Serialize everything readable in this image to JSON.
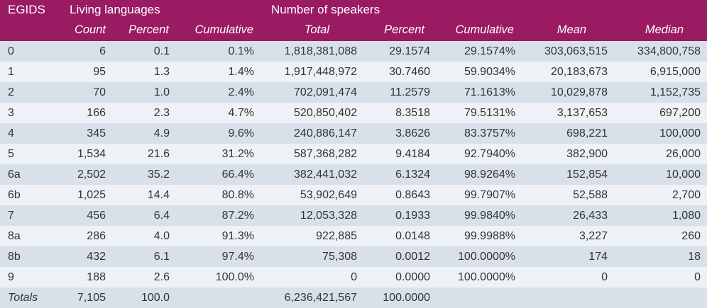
{
  "header": {
    "group1": "EGIDS",
    "group2": "Living languages",
    "group3": "Number of speakers",
    "columns": [
      "Count",
      "Percent",
      "Cumulative",
      "Total",
      "Percent",
      "Cumulative",
      "Mean",
      "Median"
    ]
  },
  "rows": [
    [
      "0",
      "6",
      "0.1",
      "0.1%",
      "1,818,381,088",
      "29.1574",
      "29.1574%",
      "303,063,515",
      "334,800,758"
    ],
    [
      "1",
      "95",
      "1.3",
      "1.4%",
      "1,917,448,972",
      "30.7460",
      "59.9034%",
      "20,183,673",
      "6,915,000"
    ],
    [
      "2",
      "70",
      "1.0",
      "2.4%",
      "702,091,474",
      "11.2579",
      "71.1613%",
      "10,029,878",
      "1,152,735"
    ],
    [
      "3",
      "166",
      "2.3",
      "4.7%",
      "520,850,402",
      "8.3518",
      "79.5131%",
      "3,137,653",
      "697,200"
    ],
    [
      "4",
      "345",
      "4.9",
      "9.6%",
      "240,886,147",
      "3.8626",
      "83.3757%",
      "698,221",
      "100,000"
    ],
    [
      "5",
      "1,534",
      "21.6",
      "31.2%",
      "587,368,282",
      "9.4184",
      "92.7940%",
      "382,900",
      "26,000"
    ],
    [
      "6a",
      "2,502",
      "35.2",
      "66.4%",
      "382,441,032",
      "6.1324",
      "98.9264%",
      "152,854",
      "10,000"
    ],
    [
      "6b",
      "1,025",
      "14.4",
      "80.8%",
      "53,902,649",
      "0.8643",
      "99.7907%",
      "52,588",
      "2,700"
    ],
    [
      "7",
      "456",
      "6.4",
      "87.2%",
      "12,053,328",
      "0.1933",
      "99.9840%",
      "26,433",
      "1,080"
    ],
    [
      "8a",
      "286",
      "4.0",
      "91.3%",
      "922,885",
      "0.0148",
      "99.9988%",
      "3,227",
      "260"
    ],
    [
      "8b",
      "432",
      "6.1",
      "97.4%",
      "75,308",
      "0.0012",
      "100.0000%",
      "174",
      "18"
    ],
    [
      "9",
      "188",
      "2.6",
      "100.0%",
      "0",
      "0.0000",
      "100.0000%",
      "0",
      "0"
    ]
  ],
  "totals": [
    "Totals",
    "7,105",
    "100.0",
    "",
    "6,236,421,567",
    "100.0000",
    "",
    "",
    ""
  ]
}
